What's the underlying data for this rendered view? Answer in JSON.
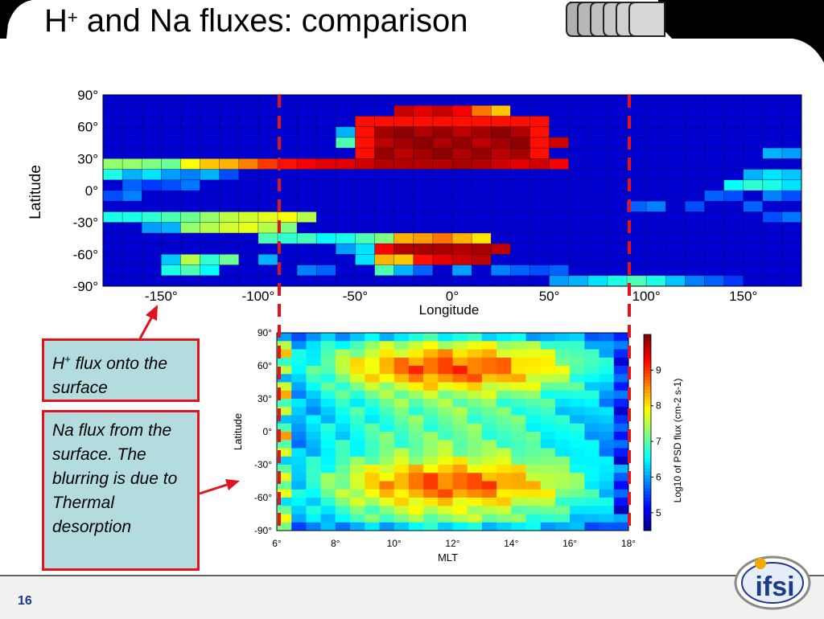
{
  "slide": {
    "title_main": "H",
    "title_sup": "+",
    "title_rest": " and Na fluxes: comparison",
    "box1_main": "H",
    "box1_sup": "+",
    "box1_rest": " flux onto the surface",
    "box2": "Na flux from the surface. The blurring is due to Thermal desorption",
    "page_number": "16",
    "logo_text": "ifsi"
  },
  "colors": {
    "accent_red": "#e0141e",
    "box_fill": "#b3dcdf",
    "map_background": "#00008f"
  },
  "chart_data": [
    {
      "type": "heatmap",
      "title": "",
      "xlabel": "Longitude",
      "ylabel": "Latitude",
      "xlim": [
        -180,
        180
      ],
      "ylim": [
        -90,
        90
      ],
      "x_ticks": [
        "-150°",
        "-100°",
        "-50°",
        "0°",
        "50°",
        "100°",
        "150°"
      ],
      "x_tick_values": [
        -150,
        -100,
        -50,
        0,
        50,
        100,
        150
      ],
      "y_ticks": [
        "90°",
        "60°",
        "30°",
        "0°",
        "-30°",
        "-60°",
        "-90°"
      ],
      "y_tick_values": [
        90,
        60,
        30,
        0,
        -30,
        -60,
        -90
      ],
      "colorbar": false,
      "background_level": 0.08,
      "cells": [
        {
          "lon0": 70,
          "lon1": 10,
          "lat0": 70,
          "lat1": 60,
          "v": 0.0
        },
        {
          "lon": -170,
          "lat": 33,
          "v": 0.52
        },
        {
          "lon": -160,
          "lat": 33,
          "v": 0.52
        },
        {
          "lon": -150,
          "lat": 33,
          "v": 0.52
        },
        {
          "lon": -140,
          "lat": 33,
          "v": 0.48
        },
        {
          "lon": -130,
          "lat": 33,
          "v": 0.65
        },
        {
          "lon": -120,
          "lat": 33,
          "v": 0.65
        },
        {
          "lon": -110,
          "lat": 33,
          "v": 0.7
        },
        {
          "lon": -100,
          "lat": 33,
          "v": 0.85
        },
        {
          "lon": -90,
          "lat": 33,
          "v": 0.85
        },
        {
          "lon": -80,
          "lat": 33,
          "v": 0.9
        },
        {
          "lon": -70,
          "lat": 33,
          "v": 0.9
        },
        {
          "lon": -60,
          "lat": 33,
          "v": 0.88
        },
        {
          "lon": -50,
          "lat": 33,
          "v": 0.72
        },
        {
          "lon": -40,
          "lat": 33,
          "v": 0.55
        },
        {
          "lon": -30,
          "lat": 33,
          "v": 0.9
        },
        {
          "lon": -20,
          "lat": 33,
          "v": 0.95
        },
        {
          "lon": -10,
          "lat": 33,
          "v": 0.95
        },
        {
          "lon": 0,
          "lat": 33,
          "v": 0.95
        },
        {
          "lon": 10,
          "lat": 33,
          "v": 0.95
        },
        {
          "lon": 20,
          "lat": 33,
          "v": 0.88
        },
        {
          "lon": 30,
          "lat": 33,
          "v": 0.88
        },
        {
          "lon": 40,
          "lat": 33,
          "v": 0.9
        },
        {
          "lon": 50,
          "lat": 33,
          "v": 0.85
        }
      ]
    },
    {
      "type": "heatmap",
      "title": "",
      "xlabel": "MLT",
      "ylabel": "Latitude",
      "xlim": [
        6,
        18
      ],
      "ylim": [
        -90,
        90
      ],
      "x_ticks": [
        "6°",
        "8°",
        "10°",
        "12°",
        "14°",
        "16°",
        "18°"
      ],
      "x_tick_values": [
        6,
        8,
        10,
        12,
        14,
        16,
        18
      ],
      "y_ticks": [
        "90°",
        "60°",
        "30°",
        "0°",
        "-30°",
        "-60°",
        "-90°"
      ],
      "y_tick_values": [
        90,
        60,
        30,
        0,
        -30,
        -60,
        -90
      ],
      "colorbar": true,
      "colorbar_label": "Log10 of PSD flux (cm-2 s-1)",
      "colorbar_range": [
        4.5,
        10
      ],
      "colorbar_ticks": [
        "5",
        "6",
        "7",
        "8",
        "9"
      ],
      "colorbar_tick_values": [
        5,
        6,
        7,
        8,
        9
      ]
    }
  ]
}
